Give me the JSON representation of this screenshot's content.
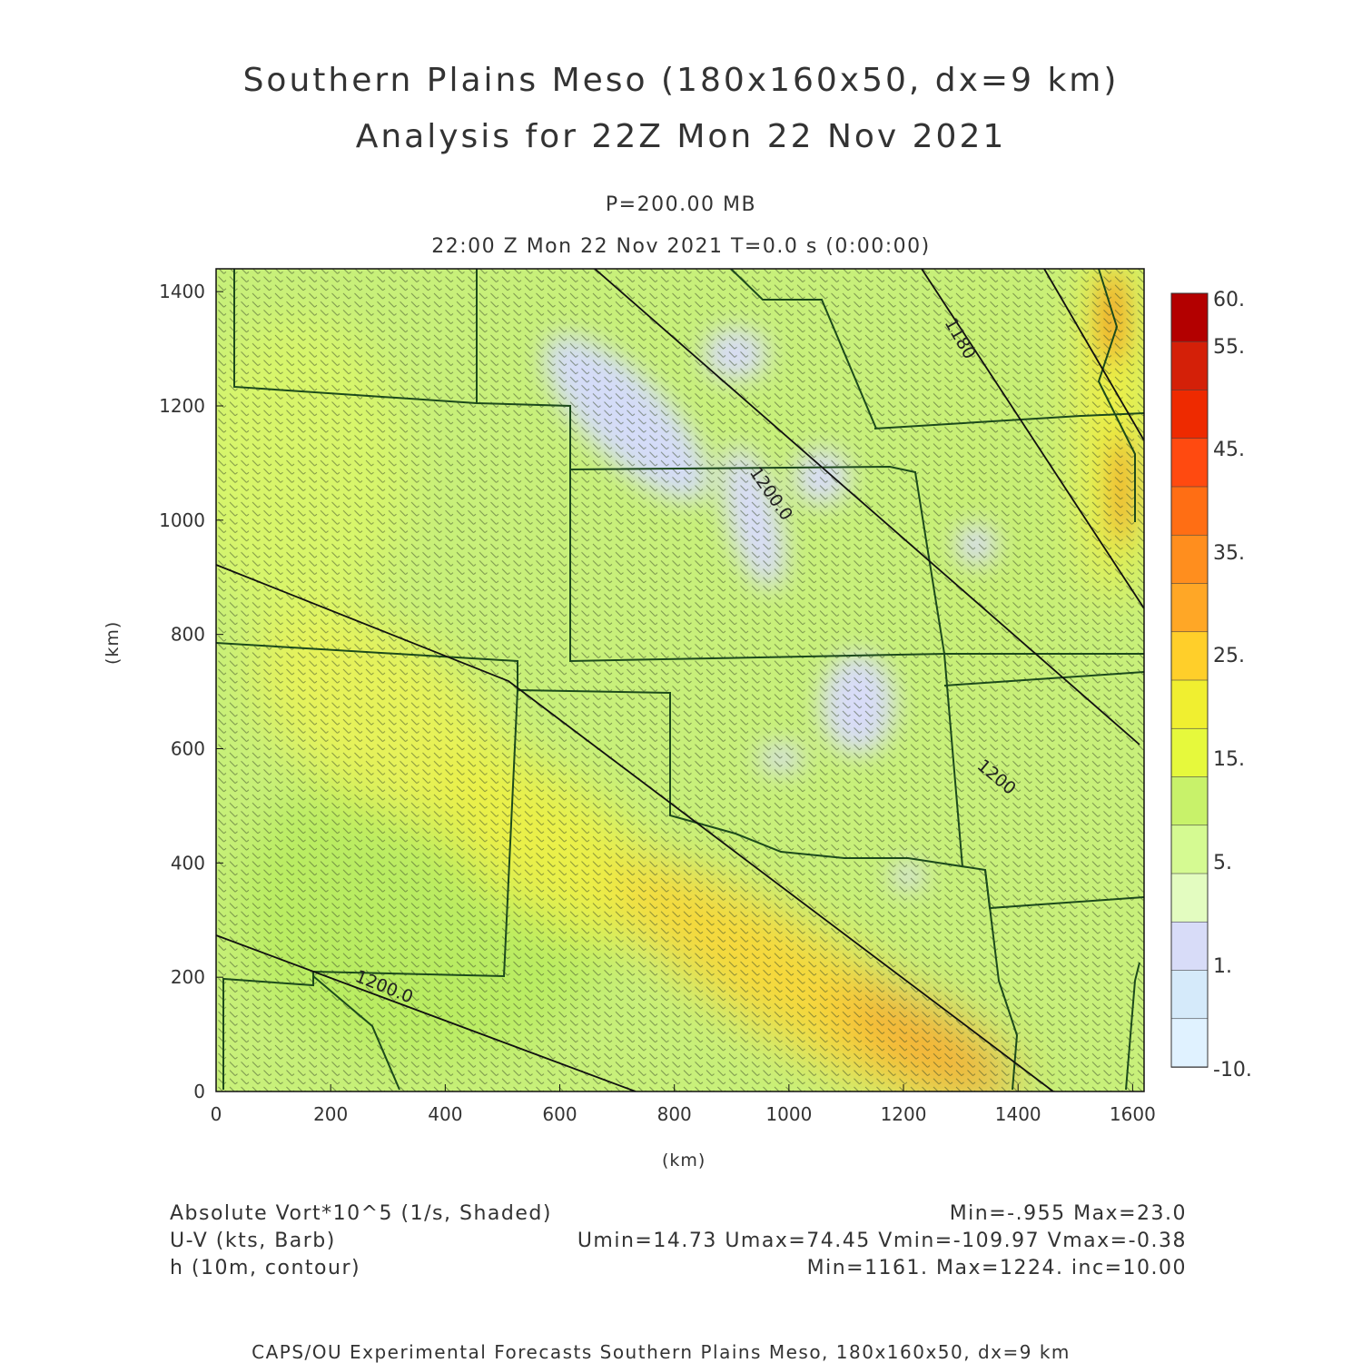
{
  "title": {
    "line1": "Southern Plains Meso (180x160x50, dx=9 km)",
    "line2": "Analysis for 22Z Mon 22 Nov 2021"
  },
  "subtitle": {
    "level": "P=200.00 MB",
    "time": "22:00 Z Mon 22 Nov 2021    T=0.0 s (0:00:00)"
  },
  "axes": {
    "x_label": "(km)",
    "y_label": "(km)",
    "x_ticks": [
      "0",
      "200",
      "400",
      "600",
      "800",
      "1000",
      "1200",
      "1400",
      "1600"
    ],
    "y_ticks": [
      "0",
      "200",
      "400",
      "600",
      "800",
      "1000",
      "1200",
      "1400"
    ],
    "x_range_km": [
      0,
      1620
    ],
    "y_range_km": [
      0,
      1440
    ]
  },
  "colorbar": {
    "labels": [
      "60.",
      "55.",
      "45.",
      "35.",
      "25.",
      "15.",
      "5.",
      "1.",
      "-10."
    ],
    "colors": [
      "#b30000",
      "#d42008",
      "#ee2a00",
      "#ff4a10",
      "#ff6e14",
      "#ff8e1e",
      "#ffa726",
      "#ffcf2a",
      "#f0ef30",
      "#e6f93c",
      "#c8f26a",
      "#d5fa92",
      "#e3fcc0",
      "#d8dcf8",
      "#d5eafa",
      "#e0f2ff"
    ]
  },
  "contours": [
    {
      "label": "1180"
    },
    {
      "label": "1200.0"
    },
    {
      "label": "1200"
    },
    {
      "label": "1200.0"
    }
  ],
  "legend": {
    "field1": "Absolute Vort*10^5 (1/s, Shaded)",
    "field1_stats": "Min=-.955 Max=23.0",
    "field2": "U-V (kts, Barb)",
    "field2_stats": "Umin=14.73 Umax=74.45 Vmin=-109.97 Vmax=-0.38",
    "field3": "h (10m, contour)",
    "field3_stats": "Min=1161. Max=1224. inc=10.00"
  },
  "footer": "CAPS/OU Experimental Forecasts  Southern Plains Meso, 180x160x50, dx=9 km"
}
